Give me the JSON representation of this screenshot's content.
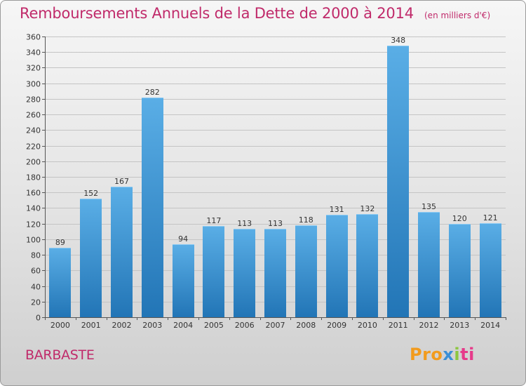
{
  "chart_data": {
    "type": "bar",
    "title": "Remboursements Annuels de la Dette de 2000 à 2014",
    "unit": "(en milliers d'€)",
    "categories": [
      "2000",
      "2001",
      "2002",
      "2003",
      "2004",
      "2005",
      "2006",
      "2007",
      "2008",
      "2009",
      "2010",
      "2011",
      "2012",
      "2013",
      "2014"
    ],
    "values": [
      89,
      152,
      167,
      282,
      94,
      117,
      113,
      113,
      118,
      131,
      132,
      348,
      135,
      120,
      121
    ],
    "ylim": [
      0,
      360
    ],
    "yticks": [
      0,
      20,
      40,
      60,
      80,
      100,
      120,
      140,
      160,
      180,
      200,
      220,
      240,
      260,
      280,
      300,
      320,
      340,
      360
    ],
    "grid": true,
    "colors": {
      "bar_light": "#5aaee6",
      "bar_dark": "#2275b6",
      "title": "#c02a6a"
    }
  },
  "place": "BARBASTE",
  "logo": {
    "text": "Proxiti",
    "parts": [
      "Pro",
      "x",
      "i",
      "ti"
    ]
  }
}
